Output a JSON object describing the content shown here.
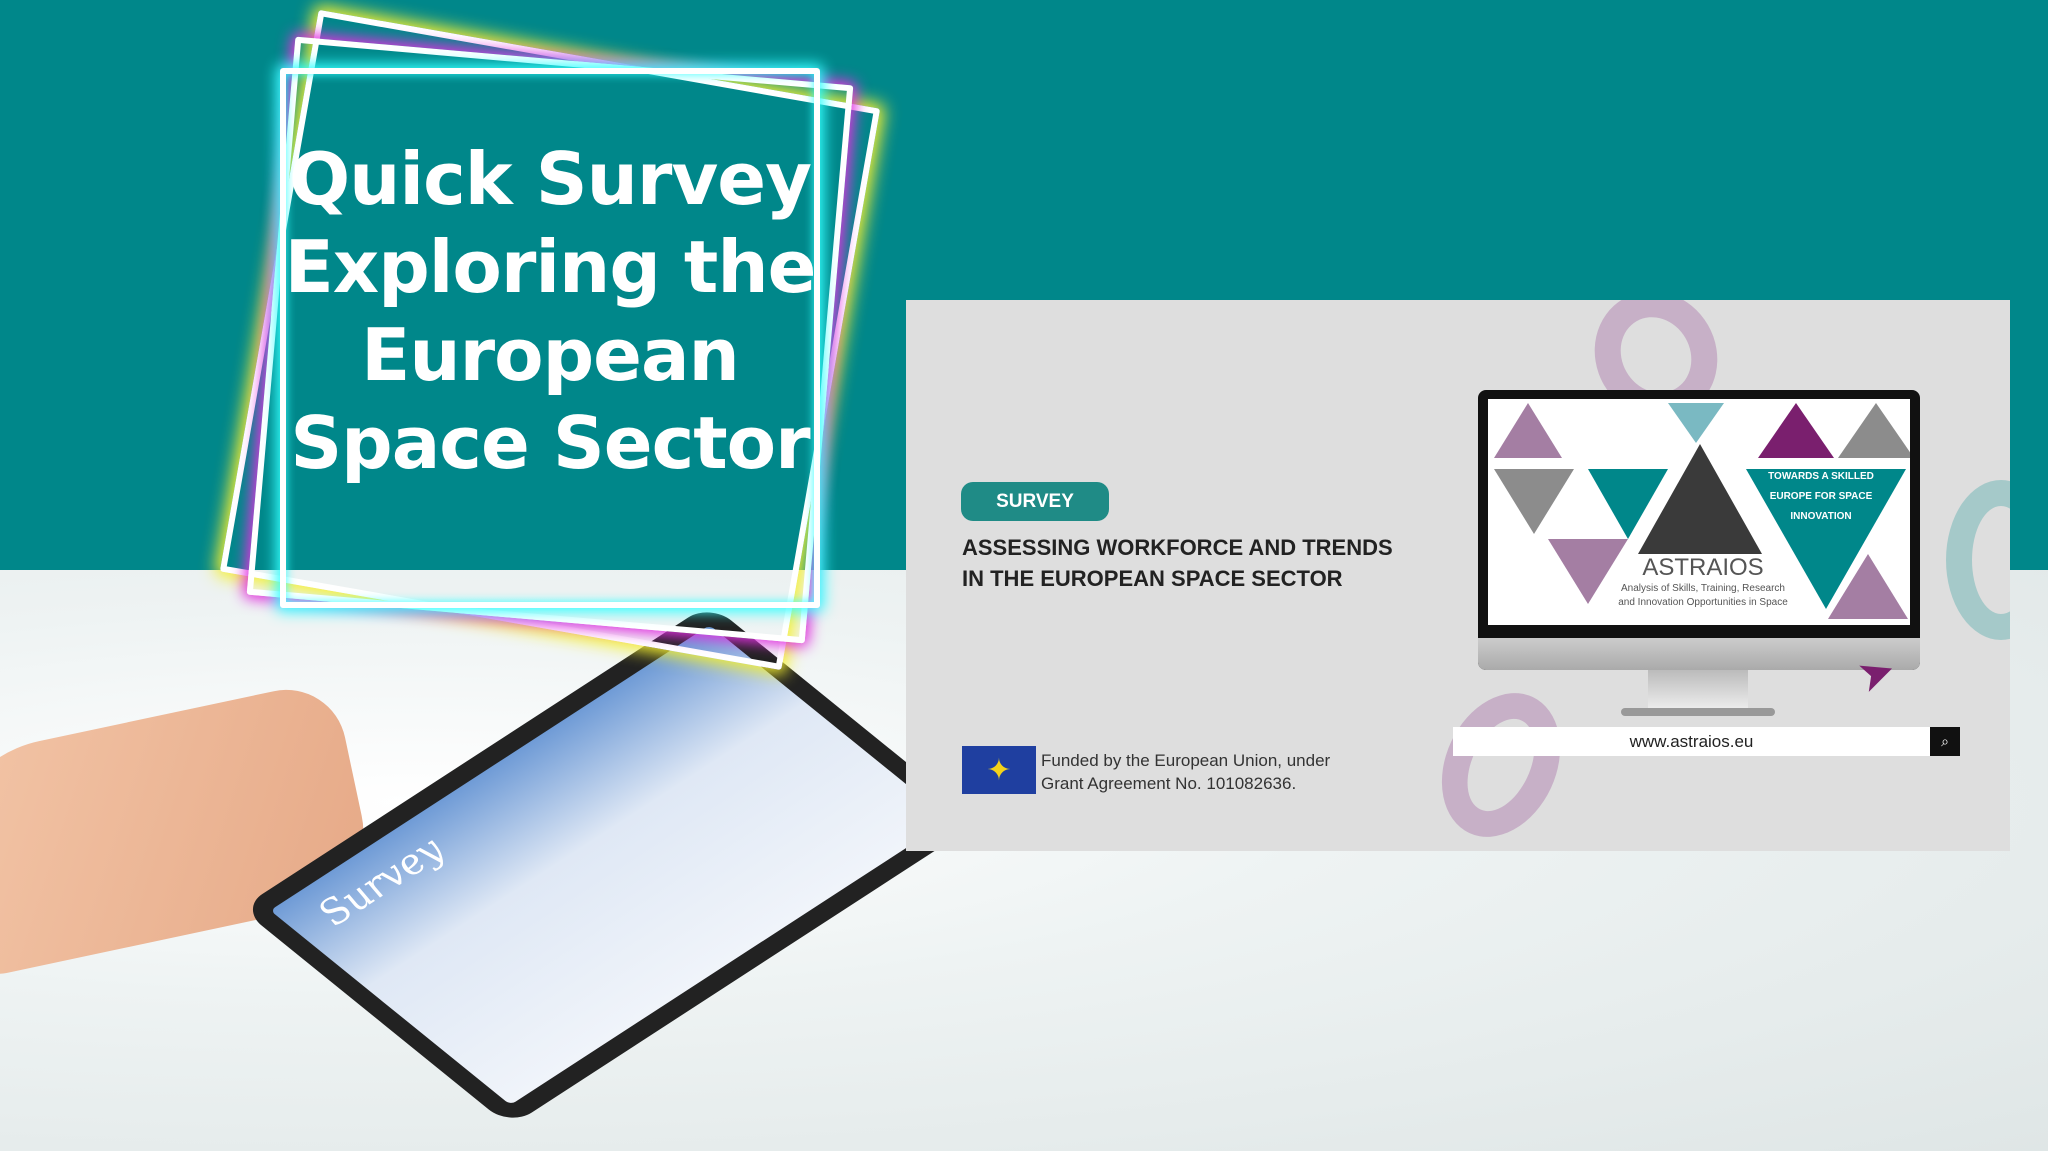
{
  "hero": {
    "title_lines": [
      "Quick Survey",
      "Exploring the",
      "European",
      "Space Sector"
    ]
  },
  "tablet": {
    "screen_text": "Survey"
  },
  "banner": {
    "badge": "SURVEY",
    "headline_lines": [
      "ASSESSING WORKFORCE AND TRENDS",
      "IN THE EUROPEAN SPACE SECTOR"
    ],
    "funding_lines": [
      "Funded by the European Union, under",
      "Grant Agreement No. 101082636."
    ],
    "monitor": {
      "brand": "ASTRAIOS",
      "subtitle_lines": [
        "Analysis of Skills, Training, Research",
        "and Innovation Opportunities in Space"
      ],
      "tagline_lines": [
        "TOWARDS A SKILLED",
        "EUROPE FOR SPACE",
        "INNOVATION"
      ]
    },
    "search": {
      "url": "www.astraios.eu",
      "icon": "search-icon"
    }
  },
  "colors": {
    "teal": "#00878a",
    "purple": "#7a1f6e",
    "badge": "#1f8b86"
  }
}
